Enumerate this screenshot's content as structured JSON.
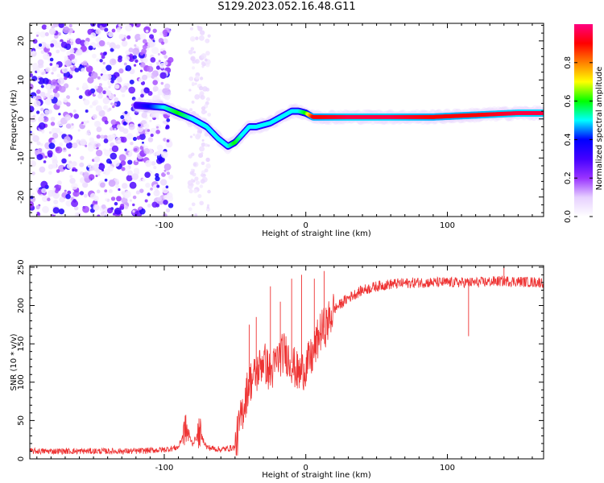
{
  "title": "S129.2023.052.16.48.G11",
  "chart_data": [
    {
      "type": "heatmap",
      "xlabel": "Height of straight line (km)",
      "ylabel": "Frequency (Hz)",
      "xlim": [
        -195,
        168
      ],
      "ylim": [
        -25,
        24.5
      ],
      "x_ticks": [
        -100,
        0,
        100
      ],
      "y_ticks": [
        20,
        10,
        0,
        -10,
        -20
      ],
      "colorbar": {
        "label": "Normalized spectral amplitude",
        "range": [
          0,
          1
        ],
        "ticks": [
          "0.0",
          "0.2",
          "0.4",
          "0.6",
          "0.8"
        ],
        "tick_values": [
          0.0,
          0.2,
          0.4,
          0.6,
          0.8
        ],
        "colormap": [
          "#ffffff",
          "#e6d0ff",
          "#9933ff",
          "#4400ff",
          "#0000ff",
          "#00ffff",
          "#00ff00",
          "#ffff00",
          "#ff8000",
          "#ff0000",
          "#ff0080"
        ]
      },
      "ridge": {
        "x": [
          -120,
          -100,
          -90,
          -80,
          -70,
          -62,
          -55,
          -50,
          -45,
          -40,
          -35,
          -30,
          -25,
          -20,
          -15,
          -10,
          -5,
          0,
          5,
          10,
          30,
          60,
          90,
          120,
          150,
          168
        ],
        "y": [
          3.5,
          3,
          1.5,
          0,
          -2,
          -5,
          -7,
          -6,
          -4,
          -2,
          -2,
          -1.5,
          -1,
          0,
          1,
          2,
          2,
          1.5,
          0.5,
          0.5,
          0.5,
          0.5,
          0.5,
          1,
          1.5,
          1.5
        ],
        "level": [
          0.3,
          0.5,
          0.6,
          0.5,
          0.5,
          0.5,
          0.5,
          0.6,
          0.5,
          0.5,
          0.5,
          0.5,
          0.5,
          0.5,
          0.5,
          0.5,
          0.5,
          0.6,
          0.9,
          0.9,
          0.95,
          0.95,
          0.9,
          0.9,
          0.95,
          0.95
        ]
      },
      "noise_region": {
        "x_range": [
          -195,
          -95
        ],
        "level": 0.25
      }
    },
    {
      "type": "line",
      "xlabel": "Height of straight line (km)",
      "ylabel": "SNR (10 * v/v)",
      "xlim": [
        -195,
        168
      ],
      "ylim": [
        0,
        252
      ],
      "x_ticks": [
        -100,
        0,
        100
      ],
      "y_ticks": [
        0,
        50,
        100,
        150,
        200,
        250
      ],
      "series": [
        {
          "color": "#ee3333",
          "x": [
            -195,
            -160,
            -120,
            -100,
            -90,
            -85,
            -80,
            -75,
            -70,
            -60,
            -50,
            -45,
            -40,
            -35,
            -30,
            -25,
            -20,
            -15,
            -10,
            -5,
            0,
            5,
            10,
            15,
            20,
            30,
            40,
            50,
            60,
            80,
            100,
            113,
            120,
            140,
            168
          ],
          "y": [
            10,
            10,
            10,
            12,
            15,
            40,
            20,
            35,
            15,
            12,
            15,
            60,
            100,
            110,
            130,
            110,
            130,
            140,
            125,
            110,
            120,
            135,
            165,
            175,
            195,
            210,
            220,
            225,
            228,
            230,
            230,
            230,
            230,
            232,
            230
          ],
          "spikes": [
            [
              -85,
              50
            ],
            [
              -40,
              175
            ],
            [
              -35,
              185
            ],
            [
              -25,
              225
            ],
            [
              -18,
              205
            ],
            [
              -10,
              235
            ],
            [
              -3,
              240
            ],
            [
              6,
              235
            ],
            [
              13,
              245
            ],
            [
              115,
              160
            ],
            [
              140,
              250
            ]
          ]
        }
      ]
    }
  ]
}
